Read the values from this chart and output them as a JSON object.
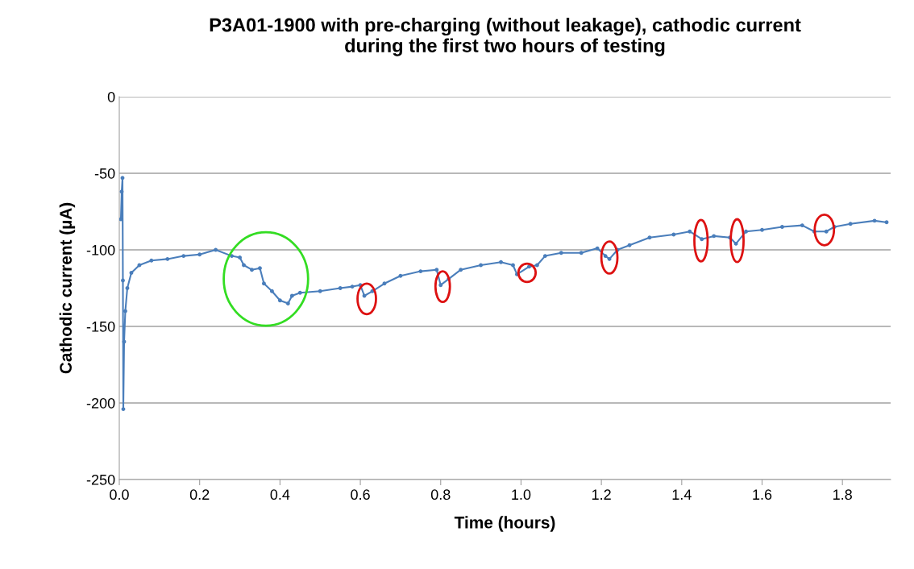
{
  "chart_data": {
    "type": "line",
    "title": "P3A01-1900 with pre-charging (without leakage), cathodic current\nduring the first two hours of testing",
    "xlabel": "Time (hours)",
    "ylabel": "Cathodic current (µA)",
    "x": [
      0.004,
      0.006,
      0.008,
      0.009,
      0.01,
      0.012,
      0.015,
      0.02,
      0.03,
      0.05,
      0.08,
      0.12,
      0.16,
      0.2,
      0.24,
      0.28,
      0.3,
      0.31,
      0.33,
      0.35,
      0.36,
      0.38,
      0.4,
      0.42,
      0.43,
      0.45,
      0.5,
      0.55,
      0.58,
      0.6,
      0.61,
      0.63,
      0.66,
      0.7,
      0.75,
      0.79,
      0.8,
      0.82,
      0.85,
      0.9,
      0.95,
      0.98,
      0.99,
      1.02,
      1.04,
      1.06,
      1.1,
      1.15,
      1.19,
      1.21,
      1.22,
      1.24,
      1.27,
      1.32,
      1.38,
      1.42,
      1.45,
      1.48,
      1.52,
      1.535,
      1.56,
      1.6,
      1.65,
      1.7,
      1.73,
      1.76,
      1.78,
      1.82,
      1.88,
      1.91
    ],
    "series": [
      {
        "color": "#4a7ebb",
        "values": [
          -80,
          -62,
          -53,
          -120,
          -204,
          -160,
          -140,
          -125,
          -115,
          -110,
          -107,
          -106,
          -104,
          -103,
          -100,
          -104,
          -105,
          -110,
          -113,
          -112,
          -122,
          -127,
          -133,
          -135,
          -130,
          -128,
          -127,
          -125,
          -124,
          -123,
          -130,
          -127,
          -122,
          -117,
          -114,
          -113,
          -123,
          -119,
          -113,
          -110,
          -108,
          -110,
          -116,
          -111,
          -110,
          -104,
          -102,
          -102,
          -99,
          -104,
          -106,
          -100,
          -97,
          -92,
          -90,
          -88,
          -93,
          -91,
          -92,
          -96,
          -88,
          -87,
          -85,
          -84,
          -88,
          -88,
          -85,
          -83,
          -81,
          -82
        ]
      }
    ],
    "xlim": [
      0,
      1.92
    ],
    "xticks": [
      {
        "value": 0,
        "label": "0.0"
      },
      {
        "value": 0.2,
        "label": "0.2"
      },
      {
        "value": 0.4,
        "label": "0.4"
      },
      {
        "value": 0.6,
        "label": "0.6"
      },
      {
        "value": 0.8,
        "label": "0.8"
      },
      {
        "value": 1.0,
        "label": "1.0"
      },
      {
        "value": 1.2,
        "label": "1.2"
      },
      {
        "value": 1.4,
        "label": "1.4"
      },
      {
        "value": 1.6,
        "label": "1.6"
      },
      {
        "value": 1.8,
        "label": "1.8"
      }
    ],
    "ylim": [
      -250,
      0
    ],
    "yticks": [
      -250,
      -200,
      -150,
      -100,
      -50,
      0
    ],
    "grid": "y",
    "marker": "circle",
    "line_style": "solid"
  }
}
